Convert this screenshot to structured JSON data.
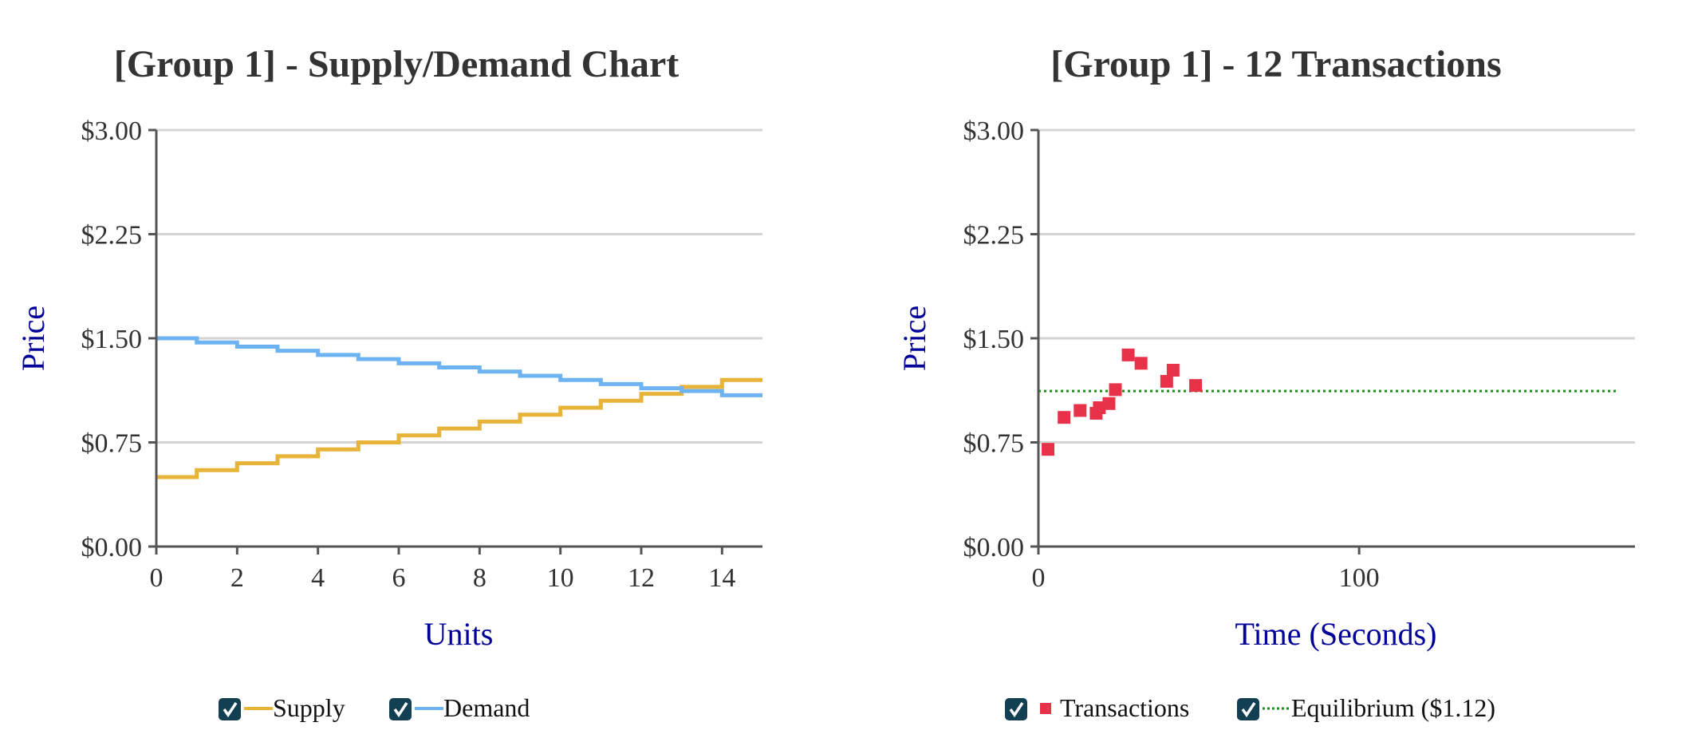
{
  "colors": {
    "supply": "#e8b339",
    "demand": "#6db3f2",
    "transactions": "#e8324a",
    "equilibrium": "#1a8f1a",
    "checkbox": "#123f52",
    "axis_label": "#000099"
  },
  "icons": {
    "legend_checkbox": "check-icon"
  },
  "chart_data": [
    {
      "type": "line",
      "title": "[Group 1] - Supply/Demand Chart",
      "xlabel": "Units",
      "ylabel": "Price",
      "xlim": [
        0,
        15
      ],
      "ylim": [
        0,
        3
      ],
      "xticks": [
        0,
        2,
        4,
        6,
        8,
        10,
        12,
        14
      ],
      "xtick_labels": [
        "0",
        "2",
        "4",
        "6",
        "8",
        "10",
        "12",
        "14"
      ],
      "yticks": [
        0,
        0.75,
        1.5,
        2.25,
        3
      ],
      "ytick_labels": [
        "$0.00",
        "$0.75",
        "$1.50",
        "$2.25",
        "$3.00"
      ],
      "grid": true,
      "legend": "bottom-center",
      "series": [
        {
          "name": "Supply",
          "step": true,
          "checked": true,
          "x": [
            0,
            1,
            2,
            3,
            4,
            5,
            6,
            7,
            8,
            9,
            10,
            11,
            12,
            13,
            14,
            15
          ],
          "y": [
            0.5,
            0.55,
            0.6,
            0.65,
            0.7,
            0.75,
            0.8,
            0.85,
            0.9,
            0.95,
            1.0,
            1.05,
            1.1,
            1.15,
            1.2,
            1.2
          ]
        },
        {
          "name": "Demand",
          "step": true,
          "checked": true,
          "x": [
            0,
            1,
            2,
            3,
            4,
            5,
            6,
            7,
            8,
            9,
            10,
            11,
            12,
            13,
            14,
            15
          ],
          "y": [
            1.5,
            1.47,
            1.44,
            1.41,
            1.38,
            1.35,
            1.32,
            1.29,
            1.26,
            1.23,
            1.2,
            1.17,
            1.14,
            1.12,
            1.09,
            1.09
          ]
        }
      ]
    },
    {
      "type": "scatter",
      "title": "[Group 1] - 12 Transactions",
      "xlabel": "Time (Seconds)",
      "ylabel": "Price",
      "xlim": [
        0,
        186
      ],
      "ylim": [
        0,
        3
      ],
      "xticks": [
        0,
        100
      ],
      "xtick_labels": [
        "0",
        "100"
      ],
      "yticks": [
        0,
        0.75,
        1.5,
        2.25,
        3
      ],
      "ytick_labels": [
        "$0.00",
        "$0.75",
        "$1.50",
        "$2.25",
        "$3.00"
      ],
      "grid": true,
      "legend": "bottom-center",
      "series": [
        {
          "name": "Transactions",
          "checked": true,
          "points": [
            [
              3,
              0.7
            ],
            [
              8,
              0.93
            ],
            [
              13,
              0.98
            ],
            [
              18,
              0.96
            ],
            [
              19,
              1.0
            ],
            [
              22,
              1.03
            ],
            [
              24,
              1.13
            ],
            [
              28,
              1.38
            ],
            [
              32,
              1.32
            ],
            [
              40,
              1.19
            ],
            [
              42,
              1.27
            ],
            [
              49,
              1.16
            ]
          ]
        },
        {
          "name": "Equilibrium ($1.12)",
          "checked": true,
          "constant_y": 1.12,
          "x_range": [
            0,
            181
          ]
        }
      ]
    }
  ]
}
